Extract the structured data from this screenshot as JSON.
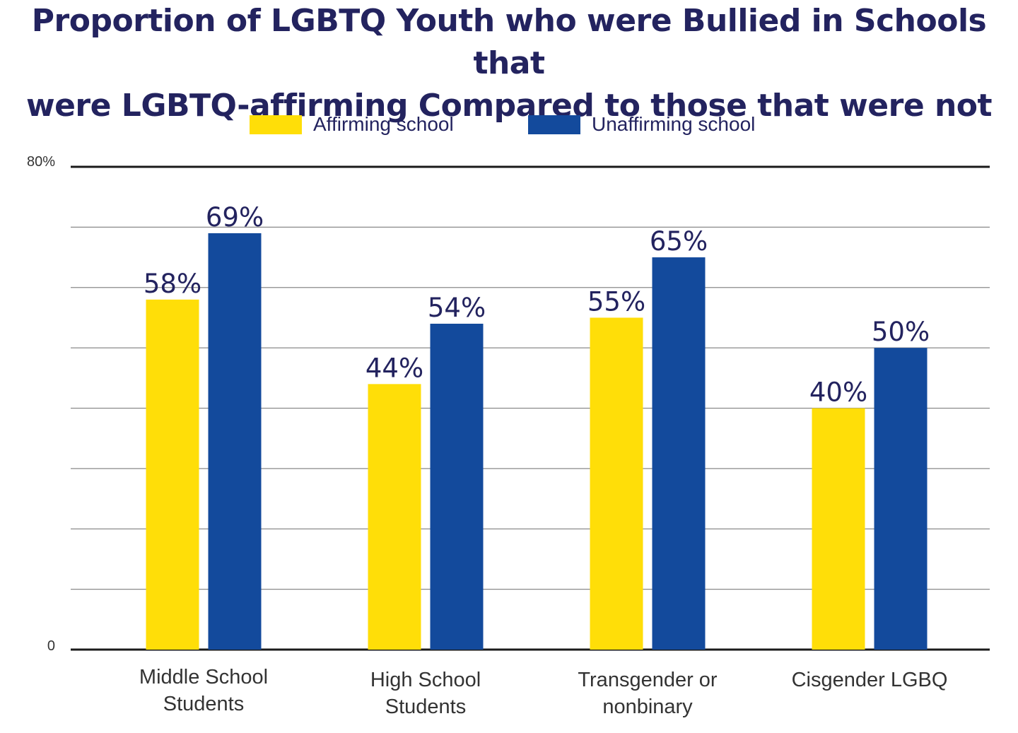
{
  "chart_data": {
    "type": "bar",
    "title_lines": [
      "Proportion of LGBTQ Youth who were Bullied in Schools that",
      "were LGBTQ-affirming Compared to those that were not"
    ],
    "categories": [
      [
        "Middle School",
        "Students"
      ],
      [
        "High School",
        "Students"
      ],
      [
        "Transgender or",
        "nonbinary"
      ],
      [
        "Cisgender LGBQ"
      ]
    ],
    "series": [
      {
        "name": "Affirming school",
        "color": "#ffde08",
        "values": [
          58,
          44,
          55,
          40
        ],
        "labels": [
          "58%",
          "44%",
          "55%",
          "40%"
        ]
      },
      {
        "name": "Unaffirming school",
        "color": "#134a9c",
        "values": [
          69,
          54,
          65,
          50
        ],
        "labels": [
          "69%",
          "54%",
          "65%",
          "50%"
        ]
      }
    ],
    "ylim": [
      0,
      80
    ],
    "ytick_labels": [
      "0",
      "80%"
    ],
    "gridlines": 8,
    "legend_position": "top-center",
    "label_color": "#23235f"
  }
}
